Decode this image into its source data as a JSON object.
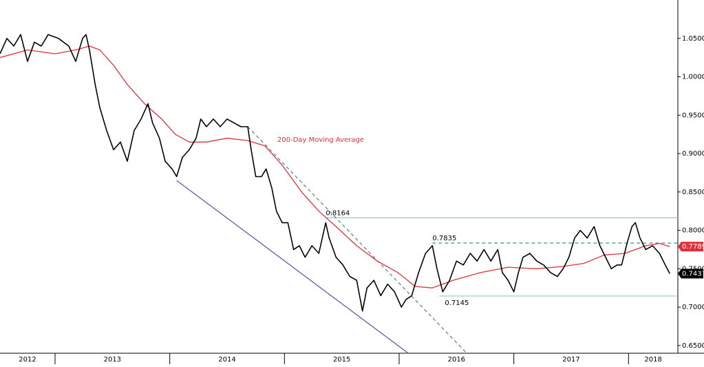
{
  "chart_data": {
    "type": "line",
    "xlim": [
      2012.52,
      2018.43
    ],
    "xticks": [
      2012,
      2013,
      2014,
      2015,
      2016,
      2017,
      2018
    ],
    "ylim": [
      0.64,
      1.1
    ],
    "yticks": [
      {
        "value": 0.65,
        "label": "0.6500"
      },
      {
        "value": 0.7,
        "label": "0.7000"
      },
      {
        "value": 0.75,
        "label": "0.7500"
      },
      {
        "value": 0.8,
        "label": "0.8000"
      },
      {
        "value": 0.85,
        "label": "0.8500"
      },
      {
        "value": 0.9,
        "label": "0.9000"
      },
      {
        "value": 0.95,
        "label": "0.9500"
      },
      {
        "value": 1.0,
        "label": "1.0000"
      },
      {
        "value": 1.05,
        "label": "1.0500"
      }
    ],
    "grid": false,
    "price": {
      "color": "#000000",
      "x": [
        2012.52,
        2012.58,
        2012.64,
        2012.7,
        2012.76,
        2012.82,
        2012.88,
        2012.94,
        2013.03,
        2013.12,
        2013.18,
        2013.24,
        2013.27,
        2013.3,
        2013.35,
        2013.39,
        2013.45,
        2013.51,
        2013.57,
        2013.63,
        2013.69,
        2013.75,
        2013.81,
        2013.85,
        2013.91,
        2013.96,
        2014.02,
        2014.06,
        2014.11,
        2014.17,
        2014.23,
        2014.27,
        2014.32,
        2014.38,
        2014.44,
        2014.5,
        2014.56,
        2014.62,
        2014.68,
        2014.71,
        2014.75,
        2014.8,
        2014.84,
        2014.89,
        2014.93,
        2014.98,
        2015.03,
        2015.08,
        2015.13,
        2015.18,
        2015.24,
        2015.3,
        2015.36,
        2015.39,
        2015.45,
        2015.51,
        2015.57,
        2015.63,
        2015.68,
        2015.72,
        2015.78,
        2015.84,
        2015.9,
        2015.96,
        2016.02,
        2016.06,
        2016.11,
        2016.17,
        2016.23,
        2016.29,
        2016.33,
        2016.38,
        2016.44,
        2016.5,
        2016.56,
        2016.62,
        2016.68,
        2016.74,
        2016.8,
        2016.86,
        2016.9,
        2016.95,
        2017.0,
        2017.04,
        2017.08,
        2017.14,
        2017.2,
        2017.26,
        2017.32,
        2017.38,
        2017.43,
        2017.48,
        2017.53,
        2017.58,
        2017.64,
        2017.7,
        2017.75,
        2017.8,
        2017.85,
        2017.9,
        2017.94,
        2017.99,
        2018.03,
        2018.06,
        2018.1,
        2018.15,
        2018.21,
        2018.27,
        2018.32,
        2018.36
      ],
      "values": [
        1.03,
        1.05,
        1.04,
        1.055,
        1.02,
        1.045,
        1.04,
        1.055,
        1.05,
        1.04,
        1.02,
        1.05,
        1.055,
        1.035,
        0.99,
        0.96,
        0.93,
        0.905,
        0.915,
        0.89,
        0.93,
        0.945,
        0.965,
        0.94,
        0.92,
        0.89,
        0.88,
        0.87,
        0.895,
        0.905,
        0.92,
        0.945,
        0.935,
        0.945,
        0.935,
        0.945,
        0.94,
        0.935,
        0.935,
        0.905,
        0.87,
        0.87,
        0.88,
        0.855,
        0.825,
        0.81,
        0.81,
        0.775,
        0.78,
        0.765,
        0.78,
        0.77,
        0.81,
        0.79,
        0.765,
        0.755,
        0.74,
        0.735,
        0.695,
        0.725,
        0.735,
        0.715,
        0.73,
        0.72,
        0.7,
        0.71,
        0.715,
        0.745,
        0.77,
        0.78,
        0.75,
        0.72,
        0.735,
        0.76,
        0.755,
        0.77,
        0.76,
        0.775,
        0.76,
        0.775,
        0.745,
        0.735,
        0.72,
        0.745,
        0.765,
        0.77,
        0.76,
        0.755,
        0.745,
        0.74,
        0.75,
        0.765,
        0.79,
        0.8,
        0.79,
        0.805,
        0.78,
        0.765,
        0.75,
        0.755,
        0.755,
        0.785,
        0.805,
        0.81,
        0.79,
        0.775,
        0.78,
        0.77,
        0.755,
        0.7437
      ]
    },
    "moving_average": {
      "name": "200-Day Moving Average",
      "color": "#e0303a",
      "x": [
        2012.52,
        2012.76,
        2013.0,
        2013.18,
        2013.3,
        2013.39,
        2013.51,
        2013.63,
        2013.78,
        2013.93,
        2014.05,
        2014.17,
        2014.32,
        2014.5,
        2014.68,
        2014.83,
        2014.98,
        2015.15,
        2015.3,
        2015.45,
        2015.63,
        2015.81,
        2015.99,
        2016.14,
        2016.29,
        2016.47,
        2016.71,
        2016.95,
        2017.19,
        2017.43,
        2017.61,
        2017.79,
        2017.97,
        2018.15,
        2018.27,
        2018.36
      ],
      "values": [
        1.025,
        1.035,
        1.03,
        1.035,
        1.04,
        1.035,
        1.015,
        0.99,
        0.965,
        0.945,
        0.925,
        0.915,
        0.915,
        0.92,
        0.917,
        0.91,
        0.885,
        0.85,
        0.825,
        0.805,
        0.78,
        0.76,
        0.745,
        0.727,
        0.725,
        0.735,
        0.745,
        0.752,
        0.75,
        0.753,
        0.757,
        0.768,
        0.77,
        0.78,
        0.783,
        0.7789
      ]
    },
    "levels": [
      {
        "value": 0.8164,
        "start": 2015.36,
        "style": "solid",
        "color": "#8fd0b0"
      },
      {
        "value": 0.7835,
        "start": 2016.29,
        "style": "dashed",
        "color": "#4a8a7a"
      },
      {
        "value": 0.7145,
        "start": 2016.35,
        "style": "solid",
        "color": "#8fd0b0"
      }
    ],
    "trendlines": [
      {
        "x": [
          2014.06,
          2016.08
        ],
        "values": [
          0.865,
          0.64
        ],
        "style": "solid",
        "color": "#5a5fa8"
      },
      {
        "x": [
          2014.68,
          2016.59
        ],
        "values": [
          0.935,
          0.64
        ],
        "style": "dashed",
        "color": "#6a7fa0"
      }
    ]
  }
}
